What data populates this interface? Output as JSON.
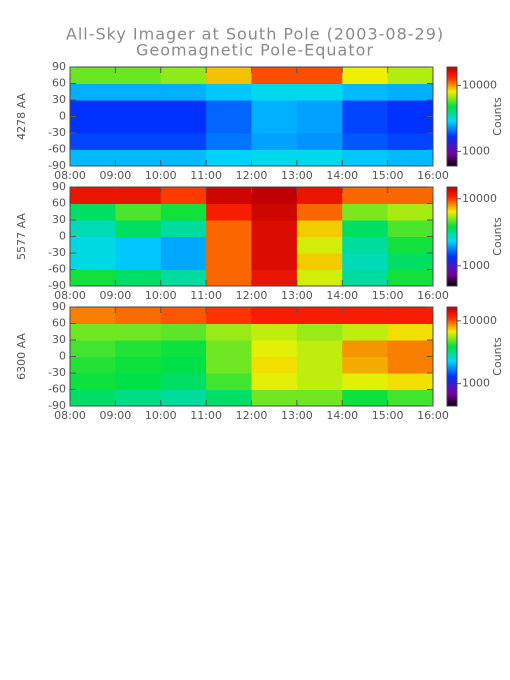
{
  "chart_data": [
    {
      "type": "heatmap",
      "title": "All-Sky Imager at South Pole (2003-08-29)",
      "subtitle": "Geomagnetic Pole-Equator",
      "ylabel": "4278 AA",
      "x": [
        8.5,
        9.5,
        10.5,
        11.5,
        12.5,
        13.5,
        14.5,
        15.5
      ],
      "y": [
        -75,
        -45,
        -15,
        15,
        45,
        75
      ],
      "values": [
        [
          2600,
          2600,
          2600,
          2800,
          3000,
          3000,
          2700,
          2600
        ],
        [
          1800,
          1800,
          1800,
          2100,
          2400,
          2300,
          1900,
          1800
        ],
        [
          1700,
          1700,
          1700,
          2000,
          2500,
          2400,
          1800,
          1700
        ],
        [
          1700,
          1700,
          1700,
          2000,
          2500,
          2400,
          1800,
          1700
        ],
        [
          2500,
          2500,
          2500,
          2700,
          3000,
          3000,
          2600,
          2500
        ],
        [
          6000,
          6000,
          6500,
          9000,
          12000,
          12000,
          8000,
          7000
        ]
      ],
      "xlim": [
        8,
        16
      ],
      "ylim": [
        -90,
        90
      ],
      "yticks": [
        -90,
        -60,
        -30,
        0,
        30,
        60,
        90
      ],
      "xticks": [
        {
          "value": 8,
          "label": "08:00"
        },
        {
          "value": 9,
          "label": "09:00"
        },
        {
          "value": 10,
          "label": "10:00"
        },
        {
          "value": 11,
          "label": "11:00"
        },
        {
          "value": 12,
          "label": "12:00"
        },
        {
          "value": 13,
          "label": "13:00"
        },
        {
          "value": 14,
          "label": "14:00"
        },
        {
          "value": 15,
          "label": "15:00"
        },
        {
          "value": 16,
          "label": "16:00"
        }
      ],
      "clim": [
        600,
        19000
      ],
      "clog": true,
      "cticks": [
        1000,
        10000
      ],
      "clabel": "Counts"
    },
    {
      "type": "heatmap",
      "ylabel": "5577 AA",
      "x": [
        8.5,
        9.5,
        10.5,
        11.5,
        12.5,
        13.5,
        14.5,
        15.5
      ],
      "y": [
        -75,
        -45,
        -15,
        15,
        45,
        75
      ],
      "values": [
        [
          4000,
          3500,
          3000,
          9000,
          12000,
          6000,
          3000,
          4000
        ],
        [
          2500,
          2200,
          2000,
          9000,
          13000,
          7000,
          2800,
          3500
        ],
        [
          2500,
          2200,
          2000,
          9000,
          13000,
          6000,
          3000,
          4000
        ],
        [
          2800,
          3500,
          3000,
          9000,
          13000,
          7000,
          3500,
          4500
        ],
        [
          3500,
          4500,
          4000,
          11000,
          14000,
          9000,
          5000,
          5500
        ],
        [
          12000,
          12000,
          10000,
          14000,
          15000,
          12000,
          9000,
          9000
        ]
      ],
      "xlim": [
        8,
        16
      ],
      "ylim": [
        -90,
        90
      ],
      "yticks": [
        -90,
        -60,
        -30,
        0,
        30,
        60,
        90
      ],
      "xticks": [
        {
          "value": 8,
          "label": "08:00"
        },
        {
          "value": 9,
          "label": "09:00"
        },
        {
          "value": 10,
          "label": "10:00"
        },
        {
          "value": 11,
          "label": "11:00"
        },
        {
          "value": 12,
          "label": "12:00"
        },
        {
          "value": 13,
          "label": "13:00"
        },
        {
          "value": 14,
          "label": "14:00"
        },
        {
          "value": 15,
          "label": "15:00"
        },
        {
          "value": 16,
          "label": "16:00"
        }
      ],
      "clim": [
        500,
        15000
      ],
      "clog": true,
      "cticks": [
        1000,
        10000
      ],
      "clabel": "Counts"
    },
    {
      "type": "heatmap",
      "ylabel": "6300 AA",
      "x": [
        8.5,
        9.5,
        10.5,
        11.5,
        12.5,
        13.5,
        14.5,
        15.5
      ],
      "y": [
        -75,
        -45,
        -15,
        15,
        45,
        75
      ],
      "values": [
        [
          3500,
          3200,
          3000,
          3500,
          5000,
          5000,
          4000,
          4500
        ],
        [
          4000,
          3800,
          3500,
          4500,
          6500,
          6000,
          6500,
          7000
        ],
        [
          4200,
          4000,
          3800,
          5000,
          7000,
          6000,
          8000,
          9000
        ],
        [
          4500,
          4200,
          4000,
          5000,
          6500,
          6000,
          8500,
          9000
        ],
        [
          5000,
          5000,
          4800,
          5500,
          6000,
          5500,
          6000,
          7000
        ],
        [
          9000,
          9500,
          10000,
          11000,
          12000,
          12000,
          12000,
          12000
        ]
      ],
      "xlim": [
        8,
        16
      ],
      "ylim": [
        -90,
        90
      ],
      "yticks": [
        -90,
        -60,
        -30,
        0,
        30,
        60,
        90
      ],
      "xticks": [
        {
          "value": 8,
          "label": "08:00"
        },
        {
          "value": 9,
          "label": "09:00"
        },
        {
          "value": 10,
          "label": "10:00"
        },
        {
          "value": 11,
          "label": "11:00"
        },
        {
          "value": 12,
          "label": "12:00"
        },
        {
          "value": 13,
          "label": "13:00"
        },
        {
          "value": 14,
          "label": "14:00"
        },
        {
          "value": 15,
          "label": "15:00"
        },
        {
          "value": 16,
          "label": "16:00"
        }
      ],
      "clim": [
        440,
        16600
      ],
      "clog": true,
      "cticks": [
        1000,
        10000
      ],
      "clabel": "Counts"
    }
  ]
}
